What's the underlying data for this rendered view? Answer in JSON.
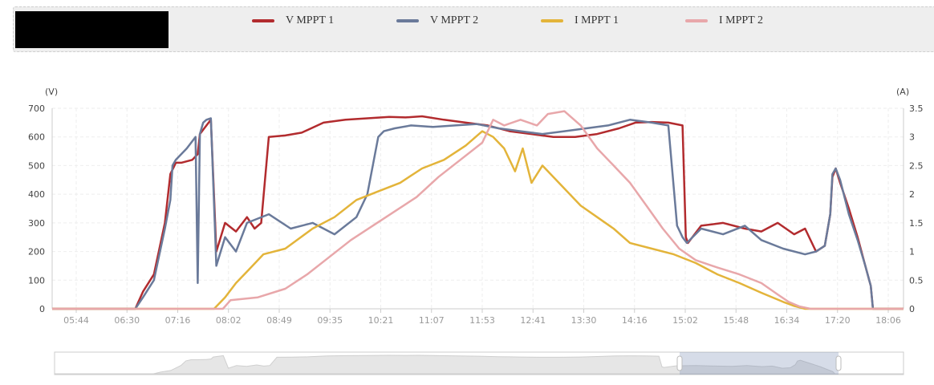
{
  "header": {
    "legend": [
      {
        "label": "V MPPT 1",
        "color": "#b22b2e"
      },
      {
        "label": "V MPPT 2",
        "color": "#6a7a9a"
      },
      {
        "label": "I MPPT 1",
        "color": "#e3b43a"
      },
      {
        "label": "I MPPT 2",
        "color": "#e8a7aa"
      }
    ]
  },
  "chart_data": {
    "type": "line",
    "y_left_label": "(V)",
    "y_right_label": "(A)",
    "y_left_ticks": [
      "0",
      "100",
      "200",
      "300",
      "400",
      "500",
      "600",
      "700"
    ],
    "y_right_ticks": [
      "0",
      "0.5",
      "1",
      "1.5",
      "2",
      "2.5",
      "3",
      "3.5"
    ],
    "ylim_left": [
      0,
      700
    ],
    "ylim_right": [
      0,
      3.5
    ],
    "x_ticks": [
      "05:44",
      "06:30",
      "07:16",
      "08:02",
      "08:49",
      "09:35",
      "10:21",
      "11:07",
      "11:53",
      "12:41",
      "13:30",
      "14:16",
      "15:02",
      "15:48",
      "16:34",
      "17:20",
      "18:06"
    ],
    "grid": true,
    "series": [
      {
        "name": "V MPPT 1",
        "axis": "left",
        "color": "#b22b2e",
        "x": [
          "05:00",
          "06:38",
          "06:45",
          "06:55",
          "07:05",
          "07:10",
          "07:15",
          "07:20",
          "07:30",
          "07:35",
          "07:37",
          "07:45",
          "07:47",
          "07:52",
          "08:00",
          "08:10",
          "08:20",
          "08:27",
          "08:33",
          "08:40",
          "08:55",
          "09:10",
          "09:30",
          "09:50",
          "10:10",
          "10:30",
          "10:45",
          "11:00",
          "11:20",
          "11:40",
          "12:00",
          "12:20",
          "12:40",
          "13:00",
          "13:20",
          "13:40",
          "14:00",
          "14:15",
          "14:30",
          "14:45",
          "14:58",
          "15:01",
          "15:03",
          "15:15",
          "15:35",
          "15:55",
          "16:10",
          "16:25",
          "16:40",
          "16:50",
          "17:00",
          "17:08",
          "17:13",
          "17:15",
          "17:18",
          "17:22",
          "17:30",
          "17:38",
          "17:45",
          "17:50",
          "17:52",
          "19:00"
        ],
        "y": [
          0,
          0,
          60,
          120,
          300,
          470,
          510,
          510,
          520,
          540,
          610,
          650,
          660,
          200,
          300,
          270,
          320,
          280,
          300,
          600,
          605,
          615,
          650,
          660,
          665,
          670,
          668,
          672,
          660,
          650,
          640,
          620,
          610,
          600,
          600,
          610,
          630,
          650,
          652,
          650,
          640,
          250,
          230,
          290,
          300,
          280,
          270,
          300,
          260,
          280,
          200,
          220,
          330,
          460,
          490,
          440,
          350,
          250,
          150,
          80,
          0,
          0
        ]
      },
      {
        "name": "V MPPT 2",
        "axis": "left",
        "color": "#6a7a9a",
        "x": [
          "05:00",
          "06:38",
          "06:45",
          "06:55",
          "07:05",
          "07:10",
          "07:12",
          "07:15",
          "07:25",
          "07:33",
          "07:35",
          "07:37",
          "07:40",
          "07:43",
          "07:47",
          "07:52",
          "08:00",
          "08:10",
          "08:20",
          "08:40",
          "09:00",
          "09:20",
          "09:40",
          "10:00",
          "10:10",
          "10:20",
          "10:25",
          "10:35",
          "10:50",
          "11:10",
          "11:30",
          "11:50",
          "12:10",
          "12:30",
          "12:50",
          "13:10",
          "13:30",
          "13:50",
          "14:10",
          "14:30",
          "14:45",
          "14:53",
          "14:58",
          "15:02",
          "15:15",
          "15:35",
          "15:55",
          "16:10",
          "16:30",
          "16:50",
          "17:00",
          "17:08",
          "17:13",
          "17:15",
          "17:18",
          "17:22",
          "17:30",
          "17:38",
          "17:45",
          "17:50",
          "17:52",
          "19:00"
        ],
        "y": [
          0,
          0,
          40,
          100,
          280,
          380,
          500,
          520,
          560,
          600,
          90,
          610,
          650,
          660,
          665,
          150,
          250,
          200,
          300,
          330,
          280,
          300,
          260,
          320,
          400,
          600,
          620,
          630,
          640,
          635,
          640,
          645,
          630,
          620,
          610,
          620,
          630,
          640,
          660,
          650,
          640,
          290,
          250,
          230,
          280,
          260,
          290,
          240,
          210,
          190,
          200,
          220,
          330,
          470,
          490,
          450,
          330,
          240,
          150,
          80,
          0,
          0
        ]
      },
      {
        "name": "I MPPT 1",
        "axis": "right",
        "color": "#e3b43a",
        "x": [
          "05:00",
          "07:50",
          "08:00",
          "08:10",
          "08:20",
          "08:35",
          "08:55",
          "09:20",
          "09:40",
          "10:00",
          "10:20",
          "10:40",
          "11:00",
          "11:20",
          "11:40",
          "11:55",
          "12:05",
          "12:15",
          "12:25",
          "12:32",
          "12:40",
          "12:50",
          "13:00",
          "13:10",
          "13:25",
          "13:40",
          "13:55",
          "14:10",
          "14:30",
          "14:50",
          "15:10",
          "15:30",
          "15:50",
          "16:10",
          "16:30",
          "16:40",
          "16:50",
          "19:00"
        ],
        "y": [
          0,
          0,
          0.2,
          0.45,
          0.65,
          0.95,
          1.05,
          1.4,
          1.6,
          1.9,
          2.05,
          2.2,
          2.45,
          2.6,
          2.85,
          3.1,
          3.0,
          2.8,
          2.4,
          2.8,
          2.2,
          2.5,
          2.3,
          2.1,
          1.8,
          1.6,
          1.4,
          1.15,
          1.05,
          0.95,
          0.8,
          0.6,
          0.45,
          0.28,
          0.12,
          0.05,
          0,
          0
        ]
      },
      {
        "name": "I MPPT 2",
        "axis": "right",
        "color": "#e8a7aa",
        "x": [
          "05:00",
          "07:58",
          "08:05",
          "08:30",
          "08:55",
          "09:15",
          "09:35",
          "09:55",
          "10:15",
          "10:35",
          "10:55",
          "11:15",
          "11:35",
          "11:55",
          "12:05",
          "12:15",
          "12:30",
          "12:45",
          "12:55",
          "13:10",
          "13:25",
          "13:40",
          "13:55",
          "14:10",
          "14:25",
          "14:40",
          "14:55",
          "15:10",
          "15:30",
          "15:50",
          "16:10",
          "16:25",
          "16:35",
          "16:45",
          "16:55",
          "19:00"
        ],
        "y": [
          0,
          0,
          0.15,
          0.2,
          0.35,
          0.6,
          0.9,
          1.2,
          1.45,
          1.7,
          1.95,
          2.3,
          2.6,
          2.9,
          3.3,
          3.2,
          3.3,
          3.2,
          3.4,
          3.45,
          3.2,
          2.8,
          2.5,
          2.2,
          1.8,
          1.4,
          1.05,
          0.85,
          0.72,
          0.6,
          0.45,
          0.25,
          0.12,
          0.04,
          0,
          0
        ]
      }
    ]
  }
}
